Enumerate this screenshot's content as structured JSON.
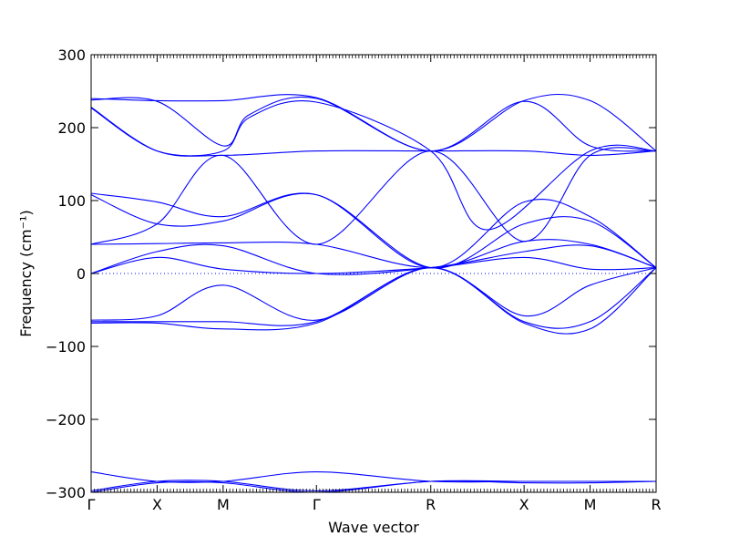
{
  "chart_data": {
    "type": "line",
    "title": "",
    "xlabel": "Wave vector",
    "ylabel": "Frequency (cm⁻¹)",
    "ylim": [
      -300,
      300
    ],
    "y_ticks": [
      -300,
      -200,
      -100,
      0,
      100,
      200,
      300
    ],
    "y_tick_labels": [
      "−300",
      "−200",
      "−100",
      "0",
      "100",
      "200",
      "300"
    ],
    "x_ticks": [
      {
        "label": "Γ",
        "pos": 0.0
      },
      {
        "label": "X",
        "pos": 0.5
      },
      {
        "label": "M",
        "pos": 1.0
      },
      {
        "label": "Γ",
        "pos": 1.707
      },
      {
        "label": "R",
        "pos": 2.573
      },
      {
        "label": "X",
        "pos": 3.28
      },
      {
        "label": "M",
        "pos": 3.78
      },
      {
        "label": "R",
        "pos": 4.28
      }
    ],
    "xlim": [
      0,
      4.28
    ],
    "zero_line": true,
    "colors": {
      "series": "#0000ff",
      "zero": "#0000ff"
    },
    "series": [
      {
        "x": [
          0,
          0.5,
          1,
          1.707,
          2.573,
          3.28,
          3.78,
          4.28
        ],
        "values": [
          240,
          237,
          237,
          241,
          168,
          237,
          237,
          168
        ]
      },
      {
        "x": [
          0,
          0.5,
          1,
          1.2,
          1.707,
          2.573,
          3.28,
          3.78,
          4.28
        ],
        "values": [
          238,
          236,
          175,
          218,
          240,
          168,
          236,
          175,
          168
        ]
      },
      {
        "x": [
          0,
          0.5,
          1,
          1.2,
          1.707,
          2.573,
          3.0,
          3.78,
          4.28
        ],
        "values": [
          227,
          168,
          168,
          214,
          235,
          168,
          60,
          168,
          168
        ]
      },
      {
        "x": [
          0,
          0.5,
          1,
          1.707,
          2.573,
          3.28,
          3.78,
          4.28
        ],
        "values": [
          228,
          168,
          162,
          168,
          168,
          168,
          162,
          168
        ]
      },
      {
        "x": [
          0,
          0.5,
          1,
          1.707,
          2.573,
          3.28,
          3.78,
          4.28
        ],
        "values": [
          110,
          98,
          78,
          108,
          8,
          98,
          78,
          8
        ]
      },
      {
        "x": [
          0,
          0.5,
          1,
          1.707,
          2.573,
          3.28,
          3.78,
          4.28
        ],
        "values": [
          108,
          68,
          72,
          108,
          8,
          68,
          72,
          8
        ]
      },
      {
        "x": [
          0,
          0.5,
          1,
          1.707,
          2.573,
          3.28,
          3.78,
          4.28
        ],
        "values": [
          40,
          68,
          162,
          40,
          168,
          44,
          162,
          168
        ]
      },
      {
        "x": [
          0,
          0.5,
          1,
          1.707,
          2.573,
          3.28,
          3.78,
          4.28
        ],
        "values": [
          40,
          41,
          42,
          40,
          8,
          44,
          40,
          8
        ]
      },
      {
        "x": [
          0,
          0.5,
          1,
          1.707,
          2.573,
          3.28,
          3.78,
          4.28
        ],
        "values": [
          0,
          30,
          38,
          0,
          8,
          30,
          38,
          8
        ]
      },
      {
        "x": [
          0,
          0.5,
          1,
          1.707,
          2.573,
          3.28,
          3.78,
          4.28
        ],
        "values": [
          0,
          22,
          6,
          0,
          8,
          22,
          6,
          8
        ]
      },
      {
        "x": [
          0,
          0.5,
          1,
          1.707,
          2.573,
          3.28,
          3.78,
          4.28
        ],
        "values": [
          -64,
          -58,
          -16,
          -64,
          8,
          -58,
          -16,
          8
        ]
      },
      {
        "x": [
          0,
          0.5,
          1,
          1.707,
          2.573,
          3.28,
          3.78,
          4.28
        ],
        "values": [
          -66,
          -66,
          -66,
          -66,
          8,
          -66,
          -66,
          8
        ]
      },
      {
        "x": [
          0,
          0.5,
          1,
          1.707,
          2.573,
          3.28,
          3.78,
          4.28
        ],
        "values": [
          -68,
          -68,
          -76,
          -68,
          8,
          -68,
          -76,
          8
        ]
      },
      {
        "x": [
          0,
          0.5,
          1,
          1.707,
          2.573,
          3.28,
          3.78,
          4.28
        ],
        "values": [
          -272,
          -285,
          -285,
          -272,
          -285,
          -285,
          -285,
          -285
        ]
      },
      {
        "x": [
          0,
          0.5,
          1,
          1.707,
          2.573,
          3.28,
          3.78,
          4.28
        ],
        "values": [
          -300,
          -287,
          -287,
          -300,
          -285,
          -287,
          -287,
          -285
        ]
      },
      {
        "x": [
          0,
          0.5,
          1,
          1.707,
          2.573,
          3.28,
          3.78,
          4.28
        ],
        "values": [
          -298,
          -285,
          -285,
          -298,
          -285,
          -285,
          -285,
          -285
        ]
      }
    ]
  }
}
